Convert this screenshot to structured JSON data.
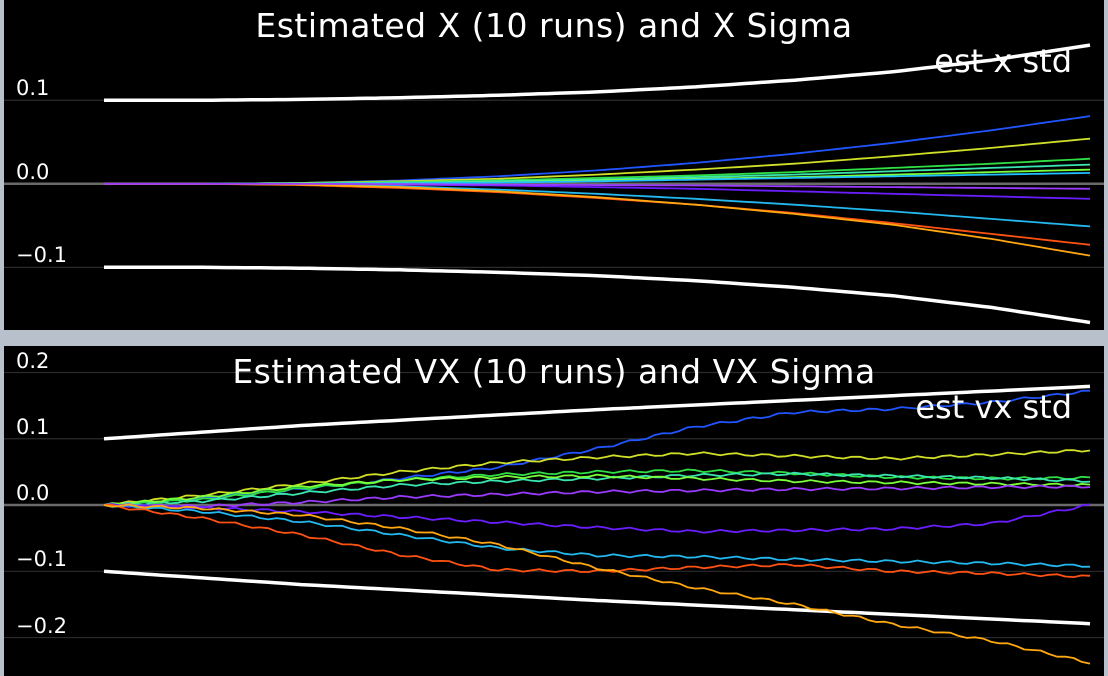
{
  "chart_data": [
    {
      "type": "line",
      "title": "Estimated X (10 runs) and X Sigma",
      "legend": [
        "est x std"
      ],
      "legend_position": "top-right",
      "x": [
        0,
        0.1,
        0.2,
        0.3,
        0.4,
        0.5,
        0.6,
        0.7,
        0.8,
        0.9,
        1.0
      ],
      "ylim": [
        -0.175,
        0.22
      ],
      "yticks": [
        -0.1,
        0.0,
        0.1
      ],
      "ytick_labels": [
        "−0.1",
        "0.0",
        "0.1"
      ],
      "grid": "horizontal",
      "series": [
        {
          "color": "#ffffff",
          "values": [
            0.1,
            0.1,
            0.101,
            0.103,
            0.106,
            0.11,
            0.116,
            0.124,
            0.134,
            0.148,
            0.166
          ]
        },
        {
          "color": "#ffffff",
          "values": [
            -0.1,
            -0.1,
            -0.101,
            -0.103,
            -0.106,
            -0.11,
            -0.116,
            -0.124,
            -0.134,
            -0.148,
            -0.166
          ]
        },
        {
          "color": "#2155ff",
          "values": [
            0,
            0,
            0.001,
            0.004,
            0.009,
            0.016,
            0.025,
            0.036,
            0.049,
            0.064,
            0.081
          ]
        },
        {
          "color": "#d0e028",
          "values": [
            0,
            0,
            0.001,
            0.003,
            0.006,
            0.011,
            0.017,
            0.024,
            0.033,
            0.043,
            0.054
          ]
        },
        {
          "color": "#2fe044",
          "values": [
            0,
            0,
            0.0005,
            0.002,
            0.004,
            0.007,
            0.01,
            0.014,
            0.019,
            0.024,
            0.03
          ]
        },
        {
          "color": "#39e6b0",
          "values": [
            0,
            0,
            0.0004,
            0.0015,
            0.003,
            0.005,
            0.008,
            0.011,
            0.015,
            0.019,
            0.023
          ]
        },
        {
          "color": "#7aff3a",
          "values": [
            0,
            0,
            0.0003,
            0.001,
            0.002,
            0.004,
            0.006,
            0.008,
            0.011,
            0.014,
            0.017
          ]
        },
        {
          "color": "#1ec0ff",
          "values": [
            0,
            0,
            0.0002,
            0.0008,
            0.0016,
            0.003,
            0.005,
            0.007,
            0.009,
            0.011,
            0.013
          ]
        },
        {
          "color": "#6a1eff",
          "values": [
            0,
            0,
            -0.0003,
            -0.001,
            -0.002,
            -0.004,
            -0.006,
            -0.009,
            -0.012,
            -0.015,
            -0.018
          ]
        },
        {
          "color": "#23b8ee",
          "values": [
            0,
            0,
            -0.001,
            -0.003,
            -0.007,
            -0.012,
            -0.018,
            -0.025,
            -0.033,
            -0.042,
            -0.051
          ]
        },
        {
          "color": "#ff5212",
          "values": [
            0,
            0,
            -0.0015,
            -0.005,
            -0.01,
            -0.017,
            -0.025,
            -0.035,
            -0.047,
            -0.06,
            -0.073
          ]
        },
        {
          "color": "#ffa812",
          "values": [
            0,
            0,
            -0.001,
            -0.004,
            -0.009,
            -0.016,
            -0.025,
            -0.036,
            -0.049,
            -0.066,
            -0.086
          ]
        },
        {
          "color": "#9b3aff",
          "values": [
            0,
            0,
            -0.0001,
            -0.0004,
            -0.001,
            -0.0015,
            -0.002,
            -0.003,
            -0.004,
            -0.005,
            -0.006
          ]
        }
      ]
    },
    {
      "type": "line",
      "title": "Estimated VX (10 runs) and VX Sigma",
      "legend": [
        "est vx std"
      ],
      "legend_position": "top-right",
      "x": [
        0,
        0.1,
        0.2,
        0.3,
        0.4,
        0.5,
        0.6,
        0.7,
        0.8,
        0.9,
        1.0
      ],
      "ylim": [
        -0.258,
        0.24
      ],
      "yticks": [
        -0.2,
        -0.1,
        0.0,
        0.1,
        0.2
      ],
      "ytick_labels": [
        "−0.2",
        "−0.1",
        "0.0",
        "0.1",
        "0.2"
      ],
      "grid": "horizontal",
      "series": [
        {
          "color": "#ffffff",
          "values": [
            0.1,
            0.11,
            0.12,
            0.128,
            0.136,
            0.144,
            0.151,
            0.158,
            0.165,
            0.172,
            0.179
          ]
        },
        {
          "color": "#ffffff",
          "values": [
            -0.1,
            -0.11,
            -0.12,
            -0.128,
            -0.136,
            -0.144,
            -0.151,
            -0.158,
            -0.165,
            -0.172,
            -0.179
          ]
        },
        {
          "color": "#2155ff",
          "values": [
            0,
            0.01,
            0.024,
            0.04,
            0.057,
            0.085,
            0.118,
            0.14,
            0.145,
            0.155,
            0.172
          ]
        },
        {
          "color": "#d0e028",
          "values": [
            0,
            0.015,
            0.032,
            0.05,
            0.064,
            0.072,
            0.078,
            0.074,
            0.07,
            0.076,
            0.083
          ]
        },
        {
          "color": "#2fe044",
          "values": [
            0,
            0.008,
            0.025,
            0.038,
            0.046,
            0.05,
            0.052,
            0.048,
            0.042,
            0.04,
            0.041
          ]
        },
        {
          "color": "#39e6b0",
          "values": [
            0,
            0.006,
            0.018,
            0.03,
            0.036,
            0.04,
            0.045,
            0.047,
            0.044,
            0.041,
            0.036
          ]
        },
        {
          "color": "#7aff3a",
          "values": [
            0,
            0.012,
            0.028,
            0.038,
            0.042,
            0.044,
            0.04,
            0.036,
            0.034,
            0.032,
            0.03
          ]
        },
        {
          "color": "#9b3aff",
          "values": [
            0,
            -0.002,
            0.004,
            0.012,
            0.016,
            0.02,
            0.022,
            0.024,
            0.025,
            0.027,
            0.028
          ]
        },
        {
          "color": "#6a1eff",
          "values": [
            0,
            -0.004,
            -0.01,
            -0.018,
            -0.026,
            -0.034,
            -0.04,
            -0.038,
            -0.036,
            -0.028,
            0
          ]
        },
        {
          "color": "#23b8ee",
          "values": [
            0,
            -0.01,
            -0.025,
            -0.045,
            -0.065,
            -0.076,
            -0.078,
            -0.082,
            -0.085,
            -0.088,
            -0.092
          ]
        },
        {
          "color": "#ff5212",
          "values": [
            0,
            -0.02,
            -0.045,
            -0.075,
            -0.098,
            -0.1,
            -0.094,
            -0.09,
            -0.1,
            -0.103,
            -0.108
          ]
        },
        {
          "color": "#ffa812",
          "values": [
            0,
            -0.005,
            -0.015,
            -0.035,
            -0.06,
            -0.095,
            -0.125,
            -0.15,
            -0.18,
            -0.205,
            -0.238
          ]
        }
      ]
    }
  ]
}
